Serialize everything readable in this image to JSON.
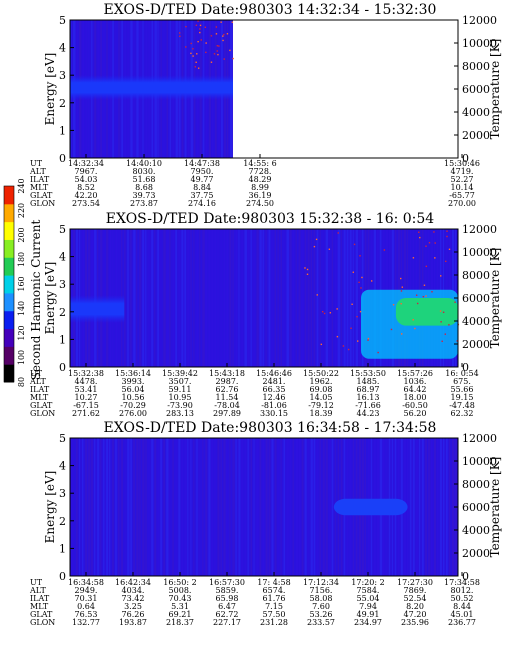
{
  "colorbar": {
    "label": "Second Harmonic Current",
    "ticks": [
      "80",
      "100",
      "120",
      "140",
      "160",
      "180",
      "200",
      "220",
      "240"
    ],
    "colors": [
      "#000000",
      "#550066",
      "#4400bb",
      "#0a1ef0",
      "#1e90ff",
      "#00d0e8",
      "#22cc55",
      "#88ee22",
      "#ffff00",
      "#ffaa00",
      "#ee2200"
    ]
  },
  "chart_data": [
    {
      "type": "heatmap",
      "title": "EXOS-D/TED   Date:980303   14:32:34 - 15:32:30",
      "ylabel": "Energy [eV]",
      "y2label": "Temperature [K]",
      "ylim": [
        0,
        5
      ],
      "y2lim": [
        0,
        12000
      ],
      "yticks": [
        "0",
        "1",
        "2",
        "3",
        "4",
        "5"
      ],
      "y2ticks": [
        "0",
        "2000",
        "4000",
        "6000",
        "8000",
        "10000",
        "12000"
      ],
      "data_coverage_fraction": 0.42,
      "features": [
        {
          "kind": "band",
          "t_start": 0.0,
          "t_end": 0.42,
          "energy_low": 2.1,
          "energy_high": 3.0,
          "level": "blue-high"
        }
      ],
      "table": {
        "labels": [
          "UT",
          "ALT",
          "ILAT",
          "MLT",
          "GLAT",
          "GLON"
        ],
        "columns": [
          [
            "14:32:34",
            "7967.",
            "54.03",
            "8.52",
            "42.20",
            "273.54"
          ],
          [
            "14:40:10",
            "8030.",
            "51.68",
            "8.68",
            "39.73",
            "273.87"
          ],
          [
            "14:47:38",
            "7950.",
            "49.77",
            "8.84",
            "37.75",
            "274.16"
          ],
          [
            "14:55: 6",
            "7728.",
            "48.29",
            "8.99",
            "36.19",
            "274.50"
          ],
          [
            "15:30:46",
            "4719.",
            "52.27",
            "10.14",
            "-65.77",
            "270.00"
          ]
        ]
      }
    },
    {
      "type": "heatmap",
      "title": "EXOS-D/TED   Date:980303   15:32:38 - 16: 0:54",
      "ylabel": "Energy [eV]",
      "y2label": "Temperature [K]",
      "ylim": [
        0,
        5
      ],
      "y2lim": [
        0,
        12000
      ],
      "yticks": [
        "0",
        "1",
        "2",
        "3",
        "4",
        "5"
      ],
      "y2ticks": [
        "0",
        "2000",
        "4000",
        "6000",
        "8000",
        "10000",
        "12000"
      ],
      "data_coverage_fraction": 1.0,
      "features": [
        {
          "kind": "band",
          "t_start": 0.0,
          "t_end": 0.14,
          "energy_low": 1.6,
          "energy_high": 2.6,
          "level": "blue-high"
        },
        {
          "kind": "patch",
          "t_start": 0.75,
          "t_end": 1.0,
          "energy_low": 0.3,
          "energy_high": 2.8,
          "level": "cyan"
        },
        {
          "kind": "patch",
          "t_start": 0.84,
          "t_end": 1.0,
          "energy_low": 1.5,
          "energy_high": 2.5,
          "level": "green"
        }
      ],
      "table": {
        "labels": [
          "UT",
          "ALT",
          "ILAT",
          "MLT",
          "GLAT",
          "GLON"
        ],
        "columns": [
          [
            "15:32:38",
            "4478.",
            "53.41",
            "10.27",
            "-67.15",
            "271.62"
          ],
          [
            "15:36:14",
            "3993.",
            "56.04",
            "10.56",
            "-70.29",
            "276.00"
          ],
          [
            "15:39:42",
            "3507.",
            "59.11",
            "10.95",
            "-73.90",
            "283.13"
          ],
          [
            "15:43:18",
            "2987.",
            "62.76",
            "11.54",
            "-78.04",
            "297.89"
          ],
          [
            "15:46:46",
            "2481.",
            "66.35",
            "12.46",
            "-81.06",
            "330.15"
          ],
          [
            "15:50:22",
            "1962.",
            "69.08",
            "14.05",
            "-79.12",
            "18.39"
          ],
          [
            "15:53:50",
            "1485.",
            "68.97",
            "16.13",
            "-71.66",
            "44.23"
          ],
          [
            "15:57:26",
            "1036.",
            "64.42",
            "18.00",
            "-60.50",
            "56.20"
          ],
          [
            "16: 0:54",
            "675.",
            "55.66",
            "19.15",
            "-47.48",
            "62.32"
          ]
        ]
      }
    },
    {
      "type": "heatmap",
      "title": "EXOS-D/TED   Date:980303   16:34:58 - 17:34:58",
      "ylabel": "Energy [eV]",
      "y2label": "Temperature [K]",
      "ylim": [
        0,
        5
      ],
      "y2lim": [
        0,
        12000
      ],
      "yticks": [
        "0",
        "1",
        "2",
        "3",
        "4",
        "5"
      ],
      "y2ticks": [
        "0",
        "2000",
        "4000",
        "6000",
        "8000",
        "10000",
        "12000"
      ],
      "data_coverage_fraction": 1.0,
      "features": [
        {
          "kind": "band",
          "t_start": 0.68,
          "t_end": 0.87,
          "energy_low": 2.2,
          "energy_high": 2.8,
          "level": "blue-high"
        }
      ],
      "table": {
        "labels": [
          "UT",
          "ALT",
          "ILAT",
          "MLT",
          "GLAT",
          "GLON"
        ],
        "columns": [
          [
            "16:34:58",
            "2949.",
            "70.31",
            "0.64",
            "76.53",
            "132.77"
          ],
          [
            "16:42:34",
            "4034.",
            "73.42",
            "3.25",
            "76.26",
            "193.87"
          ],
          [
            "16:50: 2",
            "5008.",
            "70.43",
            "5.31",
            "69.21",
            "218.37"
          ],
          [
            "16:57:30",
            "5859.",
            "65.98",
            "6.47",
            "62.72",
            "227.17"
          ],
          [
            "17: 4:58",
            "6574.",
            "61.76",
            "7.15",
            "57.50",
            "231.28"
          ],
          [
            "17:12:34",
            "7156.",
            "58.08",
            "7.60",
            "53.26",
            "233.57"
          ],
          [
            "17:20: 2",
            "7584.",
            "55.04",
            "7.94",
            "49.91",
            "234.97"
          ],
          [
            "17:27:30",
            "7869.",
            "52.54",
            "8.20",
            "47.20",
            "235.96"
          ],
          [
            "17:34:58",
            "8012.",
            "50.52",
            "8.44",
            "45.01",
            "236.77"
          ]
        ]
      }
    }
  ]
}
